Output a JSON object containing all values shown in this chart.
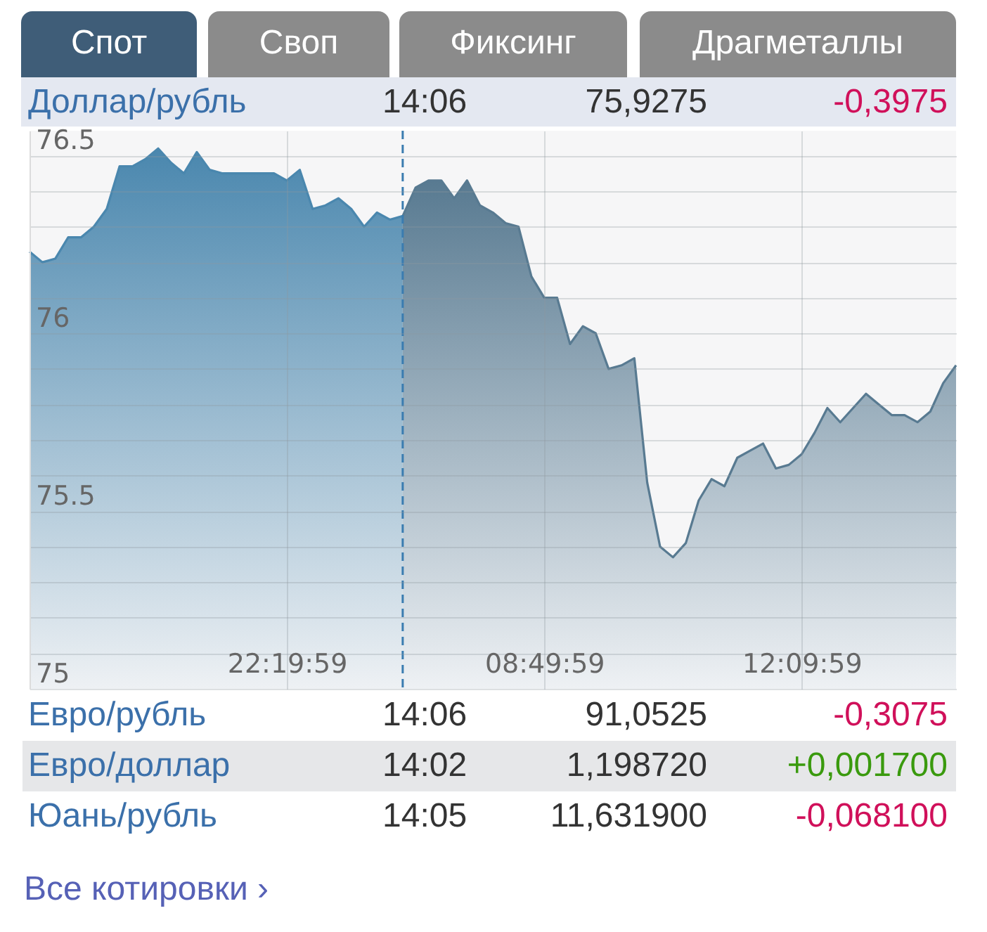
{
  "chart_data": {
    "type": "area",
    "title": "Доллар/рубль",
    "categories": [
      null,
      null,
      null,
      null,
      null,
      null,
      null,
      null,
      null,
      null,
      null,
      null,
      null,
      null,
      null,
      null,
      null,
      null,
      null,
      null,
      "22:19:59",
      null,
      null,
      null,
      null,
      null,
      null,
      null,
      null,
      null,
      null,
      null,
      null,
      null,
      null,
      null,
      null,
      null,
      null,
      null,
      "08:49:59",
      null,
      null,
      null,
      null,
      null,
      null,
      null,
      null,
      null,
      null,
      null,
      null,
      null,
      null,
      null,
      null,
      null,
      null,
      null,
      "12:09:59",
      null,
      null,
      null,
      null,
      null,
      null,
      null,
      null,
      null,
      null,
      null,
      null
    ],
    "series": [
      {
        "color": "#4a87ae",
        "values": [
          76.23,
          76.2,
          76.21,
          76.27,
          76.27,
          76.3,
          76.35,
          76.47,
          76.47,
          76.49,
          76.52,
          76.48,
          76.45,
          76.51,
          76.46,
          76.45,
          76.45,
          76.45,
          76.45,
          76.45,
          76.43,
          76.46,
          76.35,
          76.36,
          76.38,
          76.35,
          76.3,
          76.34,
          76.32,
          76.33,
          null,
          null,
          null,
          null,
          null,
          null,
          null,
          null,
          null,
          null,
          null,
          null,
          null,
          null,
          null,
          null,
          null,
          null,
          null,
          null,
          null,
          null,
          null,
          null,
          null,
          null,
          null,
          null,
          null,
          null,
          null,
          null,
          null,
          null,
          null,
          null,
          null,
          null,
          null,
          null,
          null,
          null,
          null
        ]
      },
      {
        "color": "#587a91",
        "values": [
          null,
          null,
          null,
          null,
          null,
          null,
          null,
          null,
          null,
          null,
          null,
          null,
          null,
          null,
          null,
          null,
          null,
          null,
          null,
          null,
          null,
          null,
          null,
          null,
          null,
          null,
          null,
          null,
          null,
          76.33,
          76.41,
          76.43,
          76.43,
          76.38,
          76.43,
          76.36,
          76.34,
          76.31,
          76.3,
          76.16,
          76.1,
          76.1,
          75.97,
          76.02,
          76.0,
          75.9,
          75.91,
          75.93,
          75.58,
          75.4,
          75.37,
          75.41,
          75.53,
          75.59,
          75.57,
          75.65,
          75.67,
          75.69,
          75.62,
          75.63,
          75.66,
          75.72,
          75.79,
          75.75,
          75.79,
          75.83,
          75.8,
          75.77,
          75.77,
          75.75,
          75.78,
          75.86,
          75.91
        ]
      }
    ],
    "ylim": [
      75,
      76.57
    ],
    "yticks": [
      75,
      {
        "value": 75.1,
        "label": null
      },
      {
        "value": 75.2,
        "label": null
      },
      {
        "value": 75.3,
        "label": null
      },
      {
        "value": 75.4,
        "label": null
      },
      75.5,
      {
        "value": 75.6,
        "label": null
      },
      {
        "value": 75.7,
        "label": null
      },
      {
        "value": 75.8,
        "label": null
      },
      {
        "value": 75.9,
        "label": null
      },
      76,
      {
        "value": 76.1,
        "label": null
      },
      {
        "value": 76.2,
        "label": null
      },
      {
        "value": 76.3,
        "label": null
      },
      {
        "value": 76.4,
        "label": null
      },
      76.5
    ],
    "grid": true,
    "annotations": [
      "Спот",
      "Своп",
      "Фиксинг",
      "Драгметаллы",
      "14:06",
      "75,9275",
      "-0,3975",
      "Евро/рубль",
      "14:06",
      "91,0525",
      "-0,3075",
      "Евро/доллар",
      "14:02",
      "1,198720",
      "+0,001700",
      "Юань/рубль",
      "14:05",
      "11,631900",
      "-0,068100",
      "Все котировки ›"
    ]
  }
}
